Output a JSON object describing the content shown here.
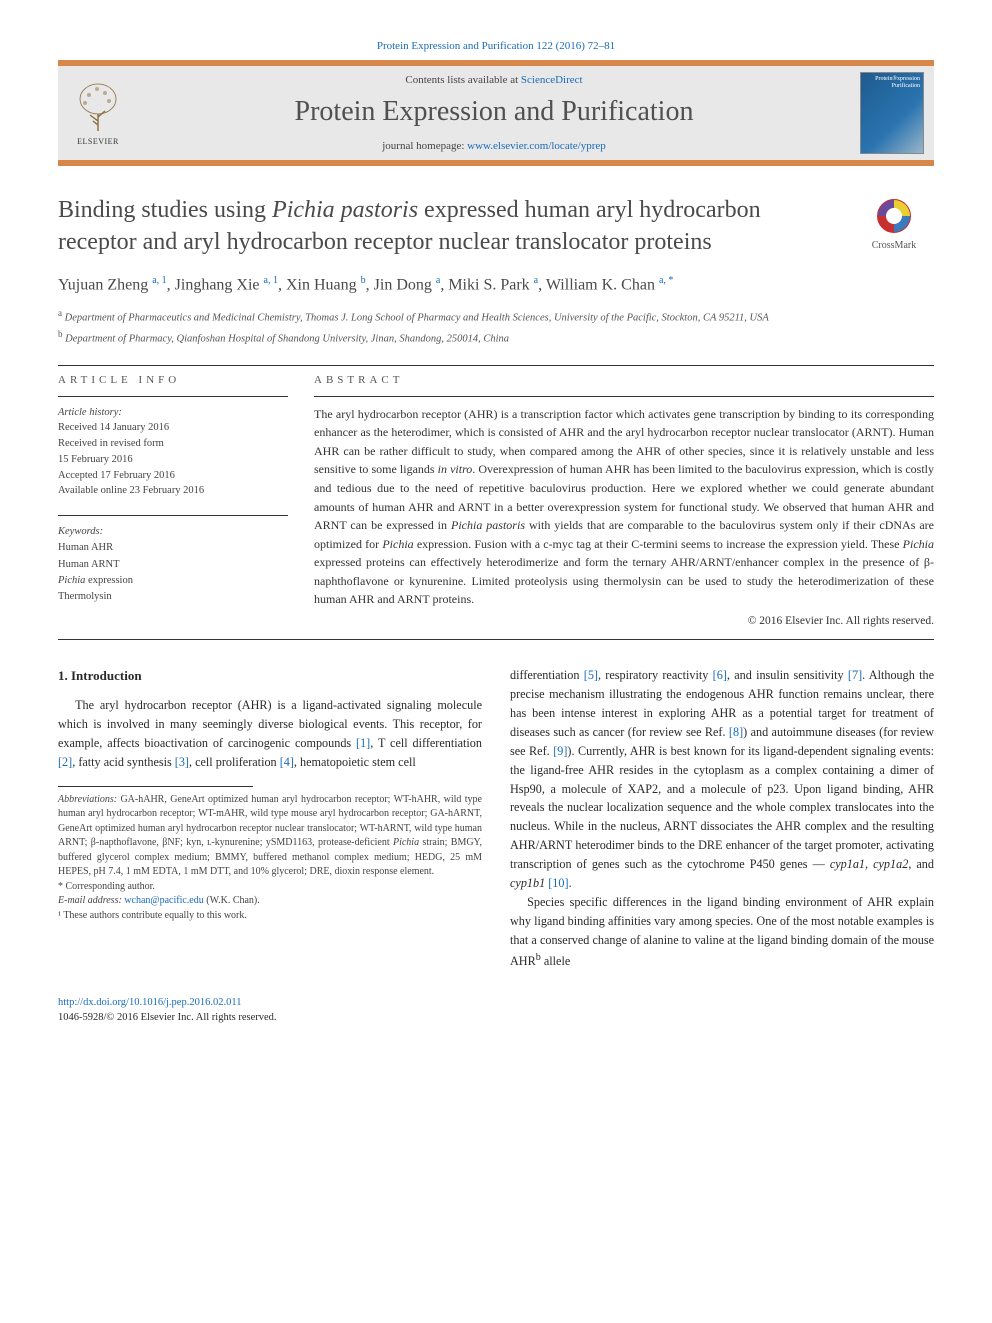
{
  "citation": {
    "journal_link": "Protein Expression and Purification 122 (2016) 72–81"
  },
  "banner": {
    "contents_prefix": "Contents lists available at ",
    "contents_link": "ScienceDirect",
    "journal": "Protein Expression and Purification",
    "homepage_prefix": "journal homepage: ",
    "homepage_url": "www.elsevier.com/locate/yprep",
    "publisher_label": "ELSEVIER"
  },
  "crossmark_label": "CrossMark",
  "title": {
    "pre": "Binding studies using ",
    "ital": "Pichia pastoris",
    "post": " expressed human aryl hydrocarbon receptor and aryl hydrocarbon receptor nuclear translocator proteins"
  },
  "authors_html": "Yujuan Zheng <sup>a, 1</sup>, Jinghang Xie <sup>a, 1</sup>, Xin Huang <sup>b</sup>, Jin Dong <sup>a</sup>, Miki S. Park <sup>a</sup>, William K. Chan <sup>a, *</sup>",
  "affiliations": [
    {
      "sup": "a",
      "text": "Department of Pharmaceutics and Medicinal Chemistry, Thomas J. Long School of Pharmacy and Health Sciences, University of the Pacific, Stockton, CA 95211, USA"
    },
    {
      "sup": "b",
      "text": "Department of Pharmacy, Qianfoshan Hospital of Shandong University, Jinan, Shandong, 250014, China"
    }
  ],
  "info": {
    "article_info_label": "ARTICLE INFO",
    "abstract_label": "ABSTRACT",
    "history_head": "Article history:",
    "history": [
      "Received 14 January 2016",
      "Received in revised form",
      "15 February 2016",
      "Accepted 17 February 2016",
      "Available online 23 February 2016"
    ],
    "keywords_head": "Keywords:",
    "keywords": [
      "Human AHR",
      "Human ARNT",
      "<span class='ital'>Pichia</span> expression",
      "Thermolysin"
    ]
  },
  "abstract_html": "The aryl hydrocarbon receptor (AHR) is a transcription factor which activates gene transcription by binding to its corresponding enhancer as the heterodimer, which is consisted of AHR and the aryl hydrocarbon receptor nuclear translocator (ARNT). Human AHR can be rather difficult to study, when compared among the AHR of other species, since it is relatively unstable and less sensitive to some ligands <span class='ital'>in vitro</span>. Overexpression of human AHR has been limited to the baculovirus expression, which is costly and tedious due to the need of repetitive baculovirus production. Here we explored whether we could generate abundant amounts of human AHR and ARNT in a better overexpression system for functional study. We observed that human AHR and ARNT can be expressed in <span class='ital'>Pichia pastoris</span> with yields that are comparable to the baculovirus system only if their cDNAs are optimized for <span class='ital'>Pichia</span> expression. Fusion with a c-myc tag at their C-termini seems to increase the expression yield. These <span class='ital'>Pichia</span> expressed proteins can effectively heterodimerize and form the ternary AHR/ARNT/enhancer complex in the presence of β-naphthoflavone or kynurenine. Limited proteolysis using thermolysin can be used to study the heterodimerization of these human AHR and ARNT proteins.",
  "copyright": "© 2016 Elsevier Inc. All rights reserved.",
  "intro_heading": "1. Introduction",
  "intro_p1_html": "The aryl hydrocarbon receptor (AHR) is a ligand-activated signaling molecule which is involved in many seemingly diverse biological events. This receptor, for example, affects bioactivation of carcinogenic compounds <a class='ref' href='#'>[1]</a>, T cell differentiation <a class='ref' href='#'>[2]</a>, fatty acid synthesis <a class='ref' href='#'>[3]</a>, cell proliferation <a class='ref' href='#'>[4]</a>, hematopoietic stem cell",
  "intro_p2_html": "differentiation <a class='ref' href='#'>[5]</a>, respiratory reactivity <a class='ref' href='#'>[6]</a>, and insulin sensitivity <a class='ref' href='#'>[7]</a>. Although the precise mechanism illustrating the endogenous AHR function remains unclear, there has been intense interest in exploring AHR as a potential target for treatment of diseases such as cancer (for review see Ref. <a class='ref' href='#'>[8]</a>) and autoimmune diseases (for review see Ref. <a class='ref' href='#'>[9]</a>). Currently, AHR is best known for its ligand-dependent signaling events: the ligand-free AHR resides in the cytoplasm as a complex containing a dimer of Hsp90, a molecule of XAP2, and a molecule of p23. Upon ligand binding, AHR reveals the nuclear localization sequence and the whole complex translocates into the nucleus. While in the nucleus, ARNT dissociates the AHR complex and the resulting AHR/ARNT heterodimer binds to the DRE enhancer of the target promoter, activating transcription of genes such as the cytochrome P450 genes — <span class='ital'>cyp1a1</span>, <span class='ital'>cyp1a2</span>, and <span class='ital'>cyp1b1</span> <a class='ref' href='#'>[10]</a>.",
  "intro_p3_html": "Species specific differences in the ligand binding environment of AHR explain why ligand binding affinities vary among species. One of the most notable examples is that a conserved change of alanine to valine at the ligand binding domain of the mouse AHR<sup>b</sup> allele",
  "footnotes": {
    "abbrev_label": "Abbreviations:",
    "abbrev_text": " GA-hAHR, GeneArt optimized human aryl hydrocarbon receptor; WT-hAHR, wild type human aryl hydrocarbon receptor; WT-mAHR, wild type mouse aryl hydrocarbon receptor; GA-hARNT, GeneArt optimized human aryl hydrocarbon receptor nuclear translocator; WT-hARNT, wild type human ARNT; β-napthoflavone, βNF; kyn, ʟ-kynurenine; ySMD1163, protease-deficient <span class='ital'>Pichia</span> strain; BMGY, buffered glycerol complex medium; BMMY, buffered methanol complex medium; HEDG, 25 mM HEPES, pH 7.4, 1 mM EDTA, 1 mM DTT, and 10% glycerol; DRE, dioxin response element.",
    "corr_label": "* Corresponding author.",
    "email_label": "E-mail address:",
    "email": "wchan@pacific.edu",
    "email_name": " (W.K. Chan).",
    "note1": "¹ These authors contribute equally to this work."
  },
  "bottom": {
    "doi": "http://dx.doi.org/10.1016/j.pep.2016.02.011",
    "issn_line": "1046-5928/© 2016 Elsevier Inc. All rights reserved."
  },
  "colors": {
    "accent_orange": "#d8874a",
    "link_blue": "#1a6bb8",
    "banner_bg": "#e8e8e8",
    "text_gray": "#4a4a4a"
  }
}
